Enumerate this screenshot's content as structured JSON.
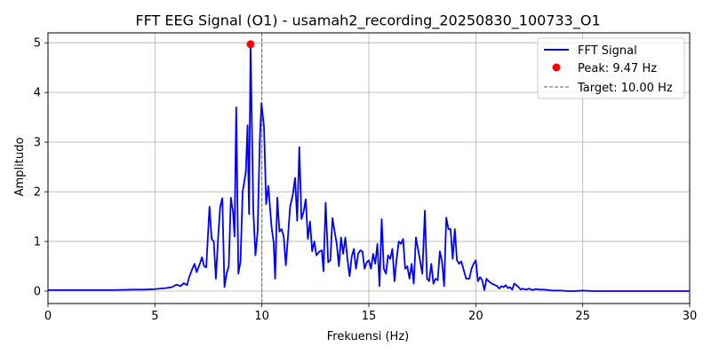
{
  "chart_data": {
    "type": "line",
    "title": "FFT EEG Signal (O1) - usamah2_recording_20250830_100733_O1",
    "xlabel": "Frekuensi (Hz)",
    "ylabel": "Amplitudo",
    "xlim": [
      0,
      30
    ],
    "ylim": [
      -0.25,
      5.2
    ],
    "x_ticks": [
      0,
      5,
      10,
      15,
      20,
      25,
      30
    ],
    "y_ticks": [
      0,
      1,
      2,
      3,
      4,
      5
    ],
    "grid": true,
    "legend_position": "top-right",
    "colors": {
      "signal": "#0000ff",
      "peak": "#ff0000",
      "target": "#808080"
    },
    "series": [
      {
        "name": "FFT Signal",
        "points": [
          [
            0.0,
            0.02
          ],
          [
            1.0,
            0.02
          ],
          [
            2.0,
            0.02
          ],
          [
            3.0,
            0.02
          ],
          [
            4.0,
            0.03
          ],
          [
            4.5,
            0.03
          ],
          [
            5.0,
            0.04
          ],
          [
            5.5,
            0.06
          ],
          [
            5.8,
            0.08
          ],
          [
            6.0,
            0.13
          ],
          [
            6.2,
            0.1
          ],
          [
            6.35,
            0.16
          ],
          [
            6.5,
            0.12
          ],
          [
            6.6,
            0.28
          ],
          [
            6.75,
            0.45
          ],
          [
            6.85,
            0.55
          ],
          [
            6.95,
            0.38
          ],
          [
            7.1,
            0.55
          ],
          [
            7.2,
            0.68
          ],
          [
            7.3,
            0.5
          ],
          [
            7.4,
            0.48
          ],
          [
            7.55,
            1.7
          ],
          [
            7.65,
            1.05
          ],
          [
            7.75,
            1.0
          ],
          [
            7.85,
            0.25
          ],
          [
            7.95,
            1.05
          ],
          [
            8.05,
            1.7
          ],
          [
            8.15,
            1.87
          ],
          [
            8.25,
            0.08
          ],
          [
            8.35,
            0.35
          ],
          [
            8.45,
            0.5
          ],
          [
            8.55,
            1.88
          ],
          [
            8.65,
            1.6
          ],
          [
            8.72,
            1.1
          ],
          [
            8.8,
            3.7
          ],
          [
            8.9,
            0.35
          ],
          [
            9.0,
            0.6
          ],
          [
            9.1,
            2.0
          ],
          [
            9.25,
            2.4
          ],
          [
            9.33,
            3.34
          ],
          [
            9.4,
            1.55
          ],
          [
            9.47,
            4.97
          ],
          [
            9.6,
            1.6
          ],
          [
            9.7,
            0.72
          ],
          [
            9.8,
            1.2
          ],
          [
            9.9,
            3.0
          ],
          [
            9.98,
            3.78
          ],
          [
            10.1,
            3.3
          ],
          [
            10.2,
            1.75
          ],
          [
            10.3,
            2.12
          ],
          [
            10.45,
            1.3
          ],
          [
            10.55,
            0.98
          ],
          [
            10.62,
            0.25
          ],
          [
            10.72,
            1.88
          ],
          [
            10.82,
            1.2
          ],
          [
            10.92,
            1.25
          ],
          [
            11.02,
            1.1
          ],
          [
            11.12,
            0.52
          ],
          [
            11.22,
            1.1
          ],
          [
            11.32,
            1.7
          ],
          [
            11.45,
            1.95
          ],
          [
            11.55,
            2.28
          ],
          [
            11.65,
            1.42
          ],
          [
            11.75,
            2.9
          ],
          [
            11.85,
            1.45
          ],
          [
            11.95,
            1.6
          ],
          [
            12.05,
            1.85
          ],
          [
            12.15,
            1.05
          ],
          [
            12.25,
            1.4
          ],
          [
            12.35,
            0.8
          ],
          [
            12.45,
            1.0
          ],
          [
            12.55,
            0.72
          ],
          [
            12.7,
            0.8
          ],
          [
            12.8,
            0.82
          ],
          [
            12.88,
            0.4
          ],
          [
            12.98,
            1.78
          ],
          [
            13.1,
            0.58
          ],
          [
            13.2,
            0.62
          ],
          [
            13.3,
            1.47
          ],
          [
            13.4,
            1.2
          ],
          [
            13.5,
            0.95
          ],
          [
            13.6,
            0.5
          ],
          [
            13.7,
            1.08
          ],
          [
            13.8,
            0.75
          ],
          [
            13.9,
            1.08
          ],
          [
            14.0,
            0.65
          ],
          [
            14.1,
            0.3
          ],
          [
            14.2,
            0.7
          ],
          [
            14.3,
            0.85
          ],
          [
            14.4,
            0.45
          ],
          [
            14.5,
            0.75
          ],
          [
            14.6,
            0.82
          ],
          [
            14.7,
            0.8
          ],
          [
            14.8,
            0.45
          ],
          [
            14.9,
            0.58
          ],
          [
            15.0,
            0.62
          ],
          [
            15.1,
            0.45
          ],
          [
            15.2,
            0.75
          ],
          [
            15.3,
            0.55
          ],
          [
            15.4,
            0.95
          ],
          [
            15.5,
            0.1
          ],
          [
            15.6,
            1.45
          ],
          [
            15.7,
            0.45
          ],
          [
            15.8,
            0.35
          ],
          [
            15.9,
            0.72
          ],
          [
            16.0,
            0.65
          ],
          [
            16.1,
            0.85
          ],
          [
            16.2,
            0.2
          ],
          [
            16.3,
            0.65
          ],
          [
            16.4,
            1.0
          ],
          [
            16.5,
            0.95
          ],
          [
            16.6,
            1.05
          ],
          [
            16.7,
            0.45
          ],
          [
            16.8,
            0.5
          ],
          [
            16.9,
            0.25
          ],
          [
            17.0,
            0.55
          ],
          [
            17.1,
            0.15
          ],
          [
            17.2,
            1.08
          ],
          [
            17.3,
            0.85
          ],
          [
            17.4,
            0.6
          ],
          [
            17.5,
            0.35
          ],
          [
            17.62,
            1.62
          ],
          [
            17.72,
            0.25
          ],
          [
            17.82,
            0.2
          ],
          [
            17.92,
            0.55
          ],
          [
            18.02,
            0.15
          ],
          [
            18.12,
            0.25
          ],
          [
            18.22,
            0.22
          ],
          [
            18.32,
            0.8
          ],
          [
            18.42,
            0.6
          ],
          [
            18.52,
            0.1
          ],
          [
            18.62,
            1.48
          ],
          [
            18.72,
            1.25
          ],
          [
            18.82,
            1.25
          ],
          [
            18.92,
            0.65
          ],
          [
            19.02,
            1.25
          ],
          [
            19.12,
            0.62
          ],
          [
            19.22,
            0.55
          ],
          [
            19.32,
            0.6
          ],
          [
            19.42,
            0.45
          ],
          [
            19.55,
            0.25
          ],
          [
            19.7,
            0.25
          ],
          [
            19.8,
            0.45
          ],
          [
            19.9,
            0.55
          ],
          [
            20.0,
            0.62
          ],
          [
            20.1,
            0.2
          ],
          [
            20.2,
            0.28
          ],
          [
            20.3,
            0.22
          ],
          [
            20.4,
            0.02
          ],
          [
            20.5,
            0.25
          ],
          [
            20.6,
            0.2
          ],
          [
            20.75,
            0.15
          ],
          [
            20.9,
            0.12
          ],
          [
            21.0,
            0.1
          ],
          [
            21.1,
            0.05
          ],
          [
            21.2,
            0.1
          ],
          [
            21.3,
            0.08
          ],
          [
            21.4,
            0.12
          ],
          [
            21.5,
            0.06
          ],
          [
            21.6,
            0.08
          ],
          [
            21.7,
            0.03
          ],
          [
            21.8,
            0.15
          ],
          [
            21.9,
            0.12
          ],
          [
            22.0,
            0.08
          ],
          [
            22.1,
            0.03
          ],
          [
            22.2,
            0.05
          ],
          [
            22.35,
            0.03
          ],
          [
            22.5,
            0.05
          ],
          [
            22.65,
            0.02
          ],
          [
            22.8,
            0.04
          ],
          [
            23.0,
            0.03
          ],
          [
            23.2,
            0.03
          ],
          [
            23.4,
            0.02
          ],
          [
            23.6,
            0.01
          ],
          [
            23.8,
            0.01
          ],
          [
            24.0,
            0.01
          ],
          [
            24.3,
            0.0
          ],
          [
            24.6,
            0.0
          ],
          [
            25.0,
            0.01
          ],
          [
            25.5,
            0.0
          ],
          [
            26.0,
            0.0
          ],
          [
            27.0,
            0.0
          ],
          [
            28.0,
            0.0
          ],
          [
            29.0,
            0.0
          ],
          [
            30.0,
            0.0
          ]
        ]
      }
    ],
    "peak": {
      "x": 9.47,
      "y": 4.97
    },
    "target": {
      "x": 10.0
    },
    "legend": [
      {
        "label": "FFT Signal",
        "kind": "line"
      },
      {
        "label": "Peak: 9.47 Hz",
        "kind": "marker"
      },
      {
        "label": "Target: 10.00 Hz",
        "kind": "dashed"
      }
    ]
  }
}
